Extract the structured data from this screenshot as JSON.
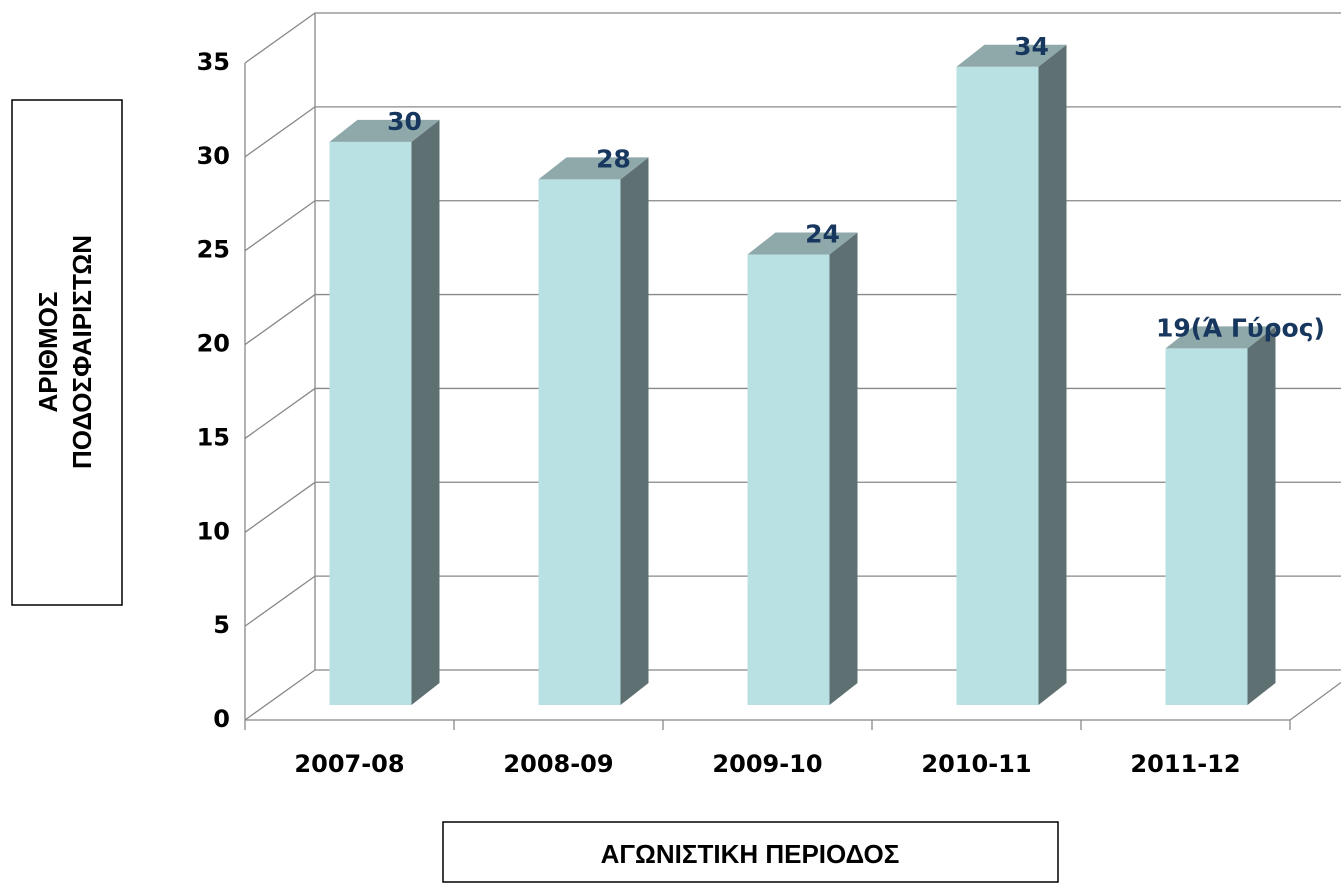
{
  "chart_data": {
    "type": "bar3d",
    "y_label": [
      "ΑΡΙΘΜΟΣ",
      "ΠΟΔΟΣΦΑΙΡΙΣΤΩΝ"
    ],
    "x_label": "ΑΓΩΝΙΣΤΙΚΗ ΠΕΡΙΟΔΟΣ",
    "categories": [
      "2007-08",
      "2008-09",
      "2009-10",
      "2010-11",
      "2011-12"
    ],
    "values": [
      30,
      28,
      24,
      34,
      19
    ],
    "value_labels": [
      "30",
      "28",
      "24",
      "34",
      "19(Ά Γύρος)"
    ],
    "color": "#b9e0e3",
    "ylim": [
      0,
      35
    ],
    "yticks": [
      0,
      5,
      10,
      15,
      20,
      25,
      30,
      35
    ],
    "grid": true
  }
}
